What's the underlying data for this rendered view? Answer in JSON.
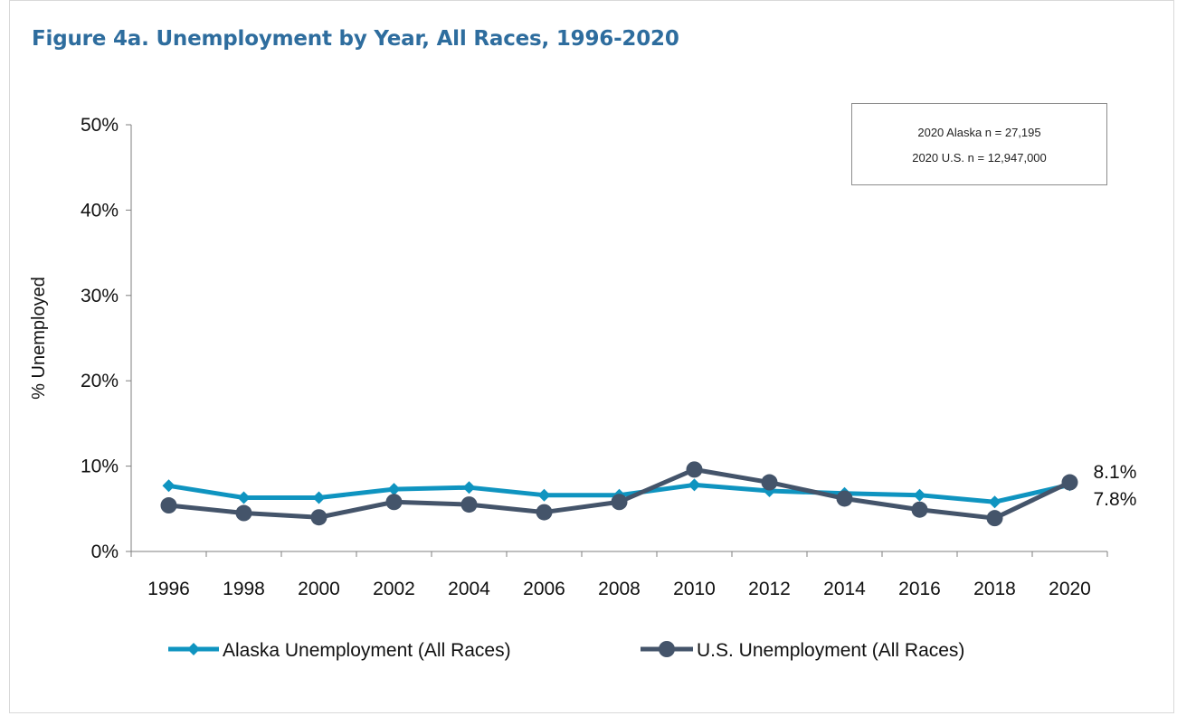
{
  "title": "Figure 4a. Unemployment by Year, All Races, 1996-2020",
  "note": {
    "line1": "2020 Alaska n = 27,195",
    "line2": "2020 U.S. n = 12,947,000"
  },
  "chart_data": {
    "type": "line",
    "title": "Figure 4a. Unemployment by Year, All Races, 1996-2020",
    "xlabel": "",
    "ylabel": "% Unemployed",
    "ylim": [
      0,
      50
    ],
    "yticks": [
      "0%",
      "10%",
      "20%",
      "30%",
      "40%",
      "50%"
    ],
    "x": [
      "1996",
      "1998",
      "2000",
      "2002",
      "2004",
      "2006",
      "2008",
      "2010",
      "2012",
      "2014",
      "2016",
      "2018",
      "2020"
    ],
    "series": [
      {
        "name": "Alaska Unemployment (All Races)",
        "color": "#0f94c0",
        "marker": "diamond",
        "values": [
          7.7,
          6.3,
          6.3,
          7.3,
          7.5,
          6.6,
          6.6,
          7.8,
          7.1,
          6.8,
          6.6,
          5.8,
          7.8
        ]
      },
      {
        "name": "U.S. Unemployment (All Races)",
        "color": "#44546a",
        "marker": "circle",
        "values": [
          5.4,
          4.5,
          4.0,
          5.8,
          5.5,
          4.6,
          5.8,
          9.6,
          8.1,
          6.2,
          4.9,
          3.9,
          8.1
        ]
      }
    ],
    "end_labels": [
      {
        "series": "U.S. Unemployment (All Races)",
        "text": "8.1%"
      },
      {
        "series": "Alaska Unemployment (All Races)",
        "text": "7.8%"
      }
    ],
    "grid": false,
    "legend_position": "bottom"
  }
}
